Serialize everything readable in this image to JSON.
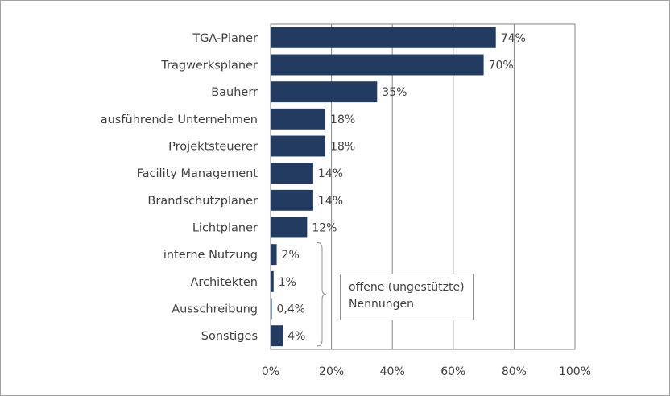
{
  "chart_data": {
    "type": "bar",
    "orientation": "horizontal",
    "categories": [
      "TGA-Planer",
      "Tragwerksplaner",
      "Bauherr",
      "ausführende Unternehmen",
      "Projektsteuerer",
      "Facility Management",
      "Brandschutzplaner",
      "Lichtplaner",
      "interne Nutzung",
      "Architekten",
      "Ausschreibung",
      "Sonstiges"
    ],
    "values": [
      74,
      70,
      35,
      18,
      18,
      14,
      14,
      12,
      2,
      1,
      0.4,
      4
    ],
    "value_labels": [
      "74%",
      "70%",
      "35%",
      "18%",
      "18%",
      "14%",
      "14%",
      "12%",
      "2%",
      "1%",
      "0,4%",
      "4%"
    ],
    "xlim": [
      0,
      100
    ],
    "xticks": [
      0,
      20,
      40,
      60,
      80,
      100
    ],
    "xtick_labels": [
      "0%",
      "20%",
      "40%",
      "60%",
      "80%",
      "100%"
    ],
    "grid": "vertical",
    "bar_color": "#233b60",
    "annotation": {
      "line1": "offene (ungestützte)",
      "line2": "Nennungen",
      "applies_to": [
        "interne Nutzung",
        "Architekten",
        "Ausschreibung",
        "Sonstiges"
      ]
    }
  }
}
